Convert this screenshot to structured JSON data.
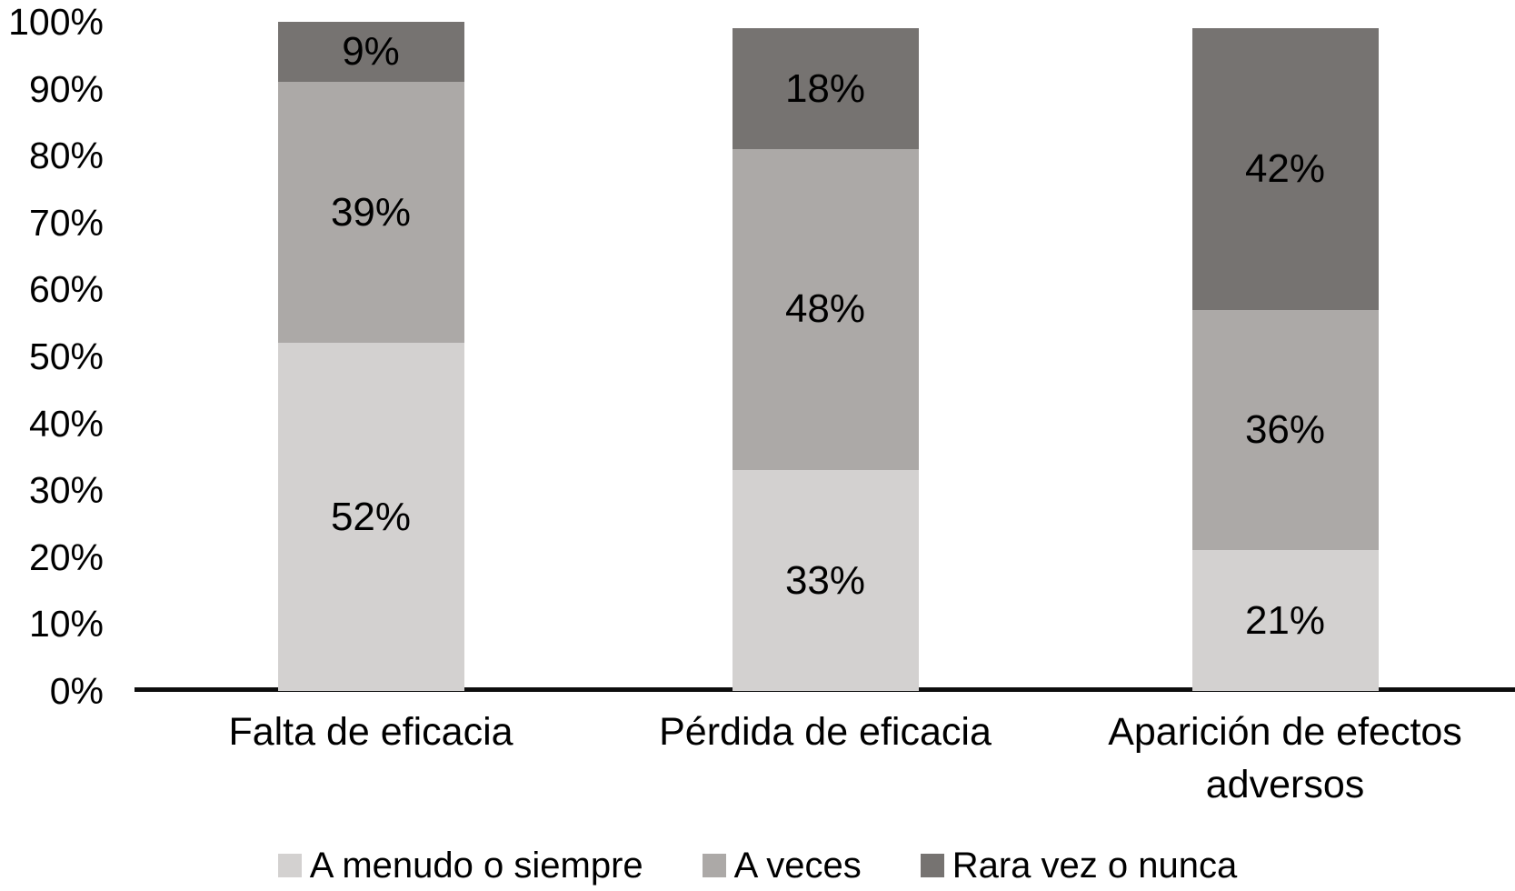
{
  "chart_data": {
    "type": "bar",
    "subtype": "stacked-percent-column",
    "title": "",
    "categories": [
      "Falta de eficacia",
      "Pérdida de eficacia",
      "Aparición de efectos adversos"
    ],
    "series": [
      {
        "name": "A menudo o siempre",
        "color": "#d3d1d0",
        "values": [
          52,
          33,
          21
        ]
      },
      {
        "name": "A veces",
        "color": "#aca9a7",
        "values": [
          39,
          48,
          36
        ]
      },
      {
        "name": "Rara vez o nunca",
        "color": "#767371",
        "values": [
          9,
          18,
          42
        ]
      }
    ],
    "data_labels": [
      "52%",
      "33%",
      "21%",
      "39%",
      "48%",
      "36%",
      "9%",
      "18%",
      "42%"
    ],
    "y_axis": {
      "min": 0,
      "max": 100,
      "tick_step": 10,
      "tick_labels": [
        "0%",
        "10%",
        "20%",
        "30%",
        "40%",
        "50%",
        "60%",
        "70%",
        "80%",
        "90%",
        "100%"
      ]
    },
    "x_axis": {
      "line_color": "#0d0d0d"
    },
    "grid": "off",
    "legend_position": "bottom",
    "text_color": "#000000",
    "background_color": "#ffffff"
  }
}
